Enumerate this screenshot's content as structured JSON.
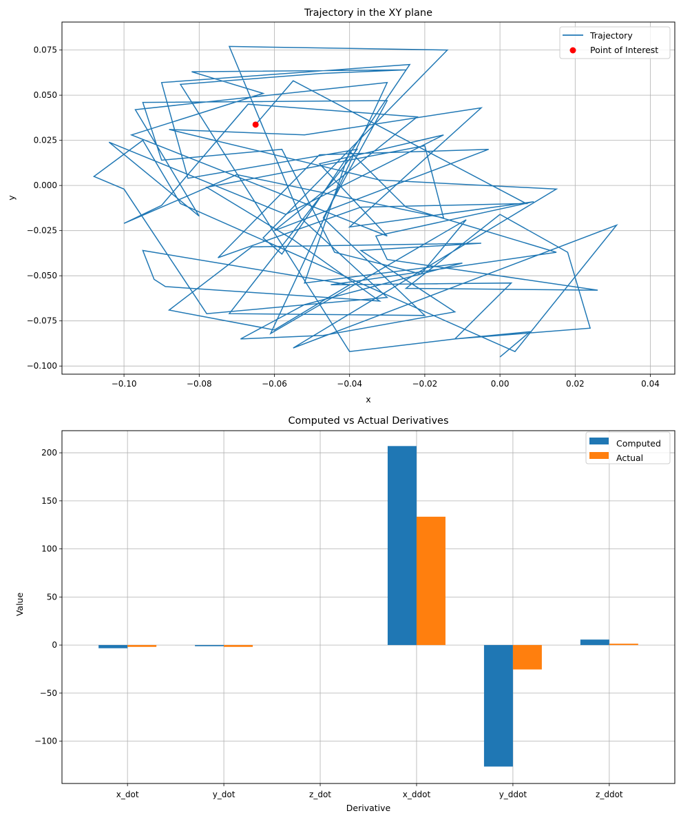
{
  "chart_data": [
    {
      "type": "line",
      "title": "Trajectory in the XY plane",
      "xlabel": "x",
      "ylabel": "y",
      "xlim": [
        -0.1165,
        0.0465
      ],
      "ylim": [
        -0.1045,
        0.0905
      ],
      "xticks": [
        -0.1,
        -0.08,
        -0.06,
        -0.04,
        -0.02,
        0.0,
        0.02,
        0.04
      ],
      "xtick_labels": [
        "−0.10",
        "−0.08",
        "−0.06",
        "−0.04",
        "−0.02",
        "0.00",
        "0.02",
        "0.04"
      ],
      "yticks": [
        -0.1,
        -0.075,
        -0.05,
        -0.025,
        0.0,
        0.025,
        0.05,
        0.075
      ],
      "ytick_labels": [
        "−0.100",
        "−0.075",
        "−0.050",
        "−0.025",
        "0.000",
        "0.025",
        "0.050",
        "0.075"
      ],
      "grid": true,
      "legend_position": "top-right",
      "series": [
        {
          "name": "Trajectory",
          "color": "#1f77b4",
          "points": [
            [
              0.0,
              -0.095
            ],
            [
              0.008,
              -0.081
            ],
            [
              -0.012,
              -0.085
            ],
            [
              0.024,
              -0.079
            ],
            [
              0.018,
              -0.037
            ],
            [
              0.0,
              -0.016
            ],
            [
              -0.025,
              -0.057
            ],
            [
              0.026,
              -0.058
            ],
            [
              -0.03,
              -0.041
            ],
            [
              -0.033,
              -0.028
            ],
            [
              0.009,
              -0.009
            ],
            [
              -0.04,
              -0.023
            ],
            [
              -0.005,
              0.043
            ],
            [
              -0.052,
              0.028
            ],
            [
              -0.088,
              0.031
            ],
            [
              -0.032,
              0.003
            ],
            [
              0.015,
              -0.002
            ],
            [
              -0.055,
              -0.09
            ],
            [
              0.031,
              -0.022
            ],
            [
              0.004,
              -0.092
            ],
            [
              -0.085,
              -0.01
            ],
            [
              -0.095,
              0.025
            ],
            [
              -0.108,
              0.005
            ],
            [
              -0.1,
              -0.002
            ],
            [
              -0.078,
              -0.071
            ],
            [
              -0.03,
              -0.062
            ],
            [
              -0.053,
              -0.018
            ],
            [
              -0.072,
              0.077
            ],
            [
              -0.014,
              0.075
            ],
            [
              -0.063,
              -0.029
            ],
            [
              -0.058,
              -0.038
            ],
            [
              -0.024,
              0.067
            ],
            [
              -0.09,
              0.057
            ],
            [
              -0.083,
              0.004
            ],
            [
              -0.038,
              0.02
            ],
            [
              -0.072,
              -0.071
            ],
            [
              -0.02,
              -0.072
            ],
            [
              -0.047,
              -0.018
            ],
            [
              -0.03,
              0.047
            ],
            [
              -0.095,
              0.046
            ],
            [
              -0.09,
              0.014
            ],
            [
              -0.058,
              0.02
            ],
            [
              -0.044,
              -0.037
            ],
            [
              -0.021,
              -0.049
            ],
            [
              -0.009,
              -0.019
            ],
            [
              -0.061,
              -0.082
            ],
            [
              -0.03,
              0.057
            ],
            [
              -0.097,
              0.042
            ],
            [
              -0.08,
              -0.017
            ],
            [
              -0.104,
              0.024
            ],
            [
              -0.057,
              -0.016
            ],
            [
              -0.015,
              0.028
            ],
            [
              -0.048,
              0.012
            ],
            [
              -0.03,
              -0.028
            ],
            [
              -0.098,
              0.028
            ],
            [
              -0.063,
              0.051
            ],
            [
              -0.082,
              0.063
            ],
            [
              -0.025,
              0.064
            ],
            [
              -0.048,
              0.062
            ],
            [
              -0.085,
              0.056
            ],
            [
              -0.04,
              -0.092
            ],
            [
              -0.012,
              -0.085
            ],
            [
              0.003,
              -0.054
            ],
            [
              -0.045,
              -0.055
            ],
            [
              0.015,
              -0.037
            ],
            [
              -0.025,
              -0.012
            ],
            [
              -0.04,
              0.019
            ],
            [
              -0.052,
              -0.054
            ],
            [
              -0.01,
              -0.043
            ],
            [
              -0.052,
              -0.066
            ],
            [
              -0.069,
              -0.085
            ],
            [
              -0.047,
              -0.083
            ],
            [
              -0.012,
              -0.07
            ],
            [
              -0.037,
              -0.036
            ],
            [
              -0.005,
              -0.032
            ],
            [
              -0.066,
              -0.034
            ],
            [
              -0.088,
              -0.069
            ],
            [
              -0.06,
              -0.08
            ],
            [
              -0.04,
              -0.055
            ],
            [
              -0.095,
              -0.036
            ],
            [
              -0.092,
              -0.052
            ],
            [
              -0.089,
              -0.056
            ],
            [
              -0.032,
              -0.064
            ],
            [
              -0.055,
              -0.03
            ],
            [
              -0.078,
              -0.001
            ],
            [
              -0.02,
              0.022
            ],
            [
              -0.015,
              -0.018
            ],
            [
              -0.07,
              0.006
            ],
            [
              -0.1,
              -0.021
            ],
            [
              -0.09,
              -0.011
            ],
            [
              -0.067,
              0.045
            ],
            [
              -0.022,
              0.038
            ],
            [
              -0.06,
              -0.025
            ],
            [
              -0.003,
              0.02
            ],
            [
              -0.048,
              0.017
            ],
            [
              -0.075,
              -0.04
            ],
            [
              -0.037,
              -0.012
            ],
            [
              0.007,
              -0.01
            ],
            [
              -0.055,
              0.058
            ],
            [
              -0.065,
              0.0337
            ]
          ]
        },
        {
          "name": "Point of Interest",
          "color": "#ff0000",
          "x": -0.065,
          "y": 0.0337
        }
      ]
    },
    {
      "type": "bar",
      "title": "Computed vs Actual Derivatives",
      "xlabel": "Derivative",
      "ylabel": "Value",
      "categories": [
        "x_dot",
        "y_dot",
        "z_dot",
        "x_ddot",
        "y_ddot",
        "z_ddot"
      ],
      "ylim": [
        -144,
        223
      ],
      "yticks": [
        -100,
        -50,
        0,
        50,
        100,
        150,
        200
      ],
      "ytick_labels": [
        "−100",
        "−50",
        "0",
        "50",
        "100",
        "150",
        "200"
      ],
      "grid": true,
      "legend_position": "top-right",
      "series": [
        {
          "name": "Computed",
          "color": "#1f77b4",
          "values": [
            -3.3,
            -1.2,
            0.0,
            207.0,
            -126.4,
            5.7
          ]
        },
        {
          "name": "Actual",
          "color": "#ff7f0e",
          "values": [
            -1.9,
            -1.9,
            0.0,
            133.5,
            -25.4,
            1.4
          ]
        }
      ]
    }
  ]
}
